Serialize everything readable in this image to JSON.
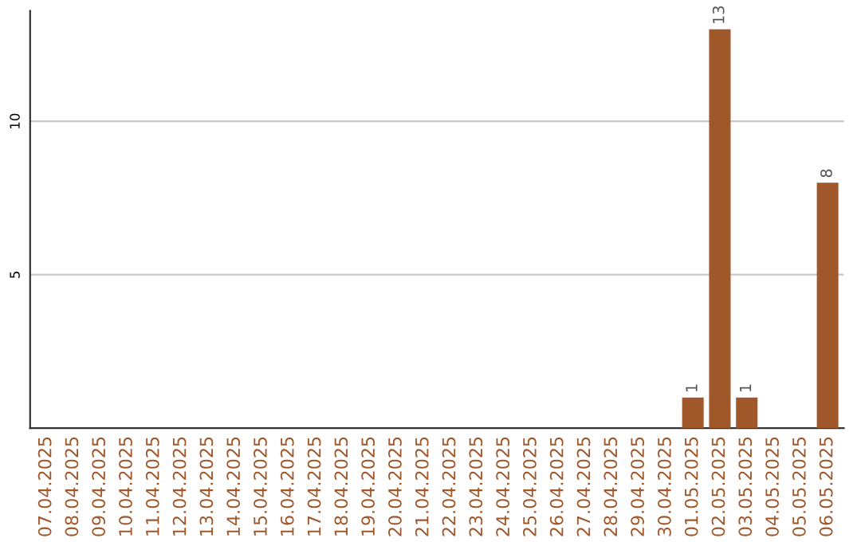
{
  "chart_data": {
    "type": "bar",
    "categories": [
      "07.04.2025",
      "08.04.2025",
      "09.04.2025",
      "10.04.2025",
      "11.04.2025",
      "12.04.2025",
      "13.04.2025",
      "14.04.2025",
      "15.04.2025",
      "16.04.2025",
      "17.04.2025",
      "18.04.2025",
      "19.04.2025",
      "20.04.2025",
      "21.04.2025",
      "22.04.2025",
      "23.04.2025",
      "24.04.2025",
      "25.04.2025",
      "26.04.2025",
      "27.04.2025",
      "28.04.2025",
      "29.04.2025",
      "30.04.2025",
      "01.05.2025",
      "02.05.2025",
      "03.05.2025",
      "04.05.2025",
      "05.05.2025",
      "06.05.2025"
    ],
    "values": [
      0,
      0,
      0,
      0,
      0,
      0,
      0,
      0,
      0,
      0,
      0,
      0,
      0,
      0,
      0,
      0,
      0,
      0,
      0,
      0,
      0,
      0,
      0,
      0,
      1,
      13,
      1,
      0,
      0,
      8
    ],
    "value_labels": [
      null,
      null,
      null,
      null,
      null,
      null,
      null,
      null,
      null,
      null,
      null,
      null,
      null,
      null,
      null,
      null,
      null,
      null,
      null,
      null,
      null,
      null,
      null,
      null,
      "1",
      "13",
      "1",
      null,
      null,
      "8"
    ],
    "color": "#a0572a",
    "ylim": [
      0,
      13.6
    ],
    "yticks": [
      5,
      10
    ],
    "grid": "y"
  }
}
